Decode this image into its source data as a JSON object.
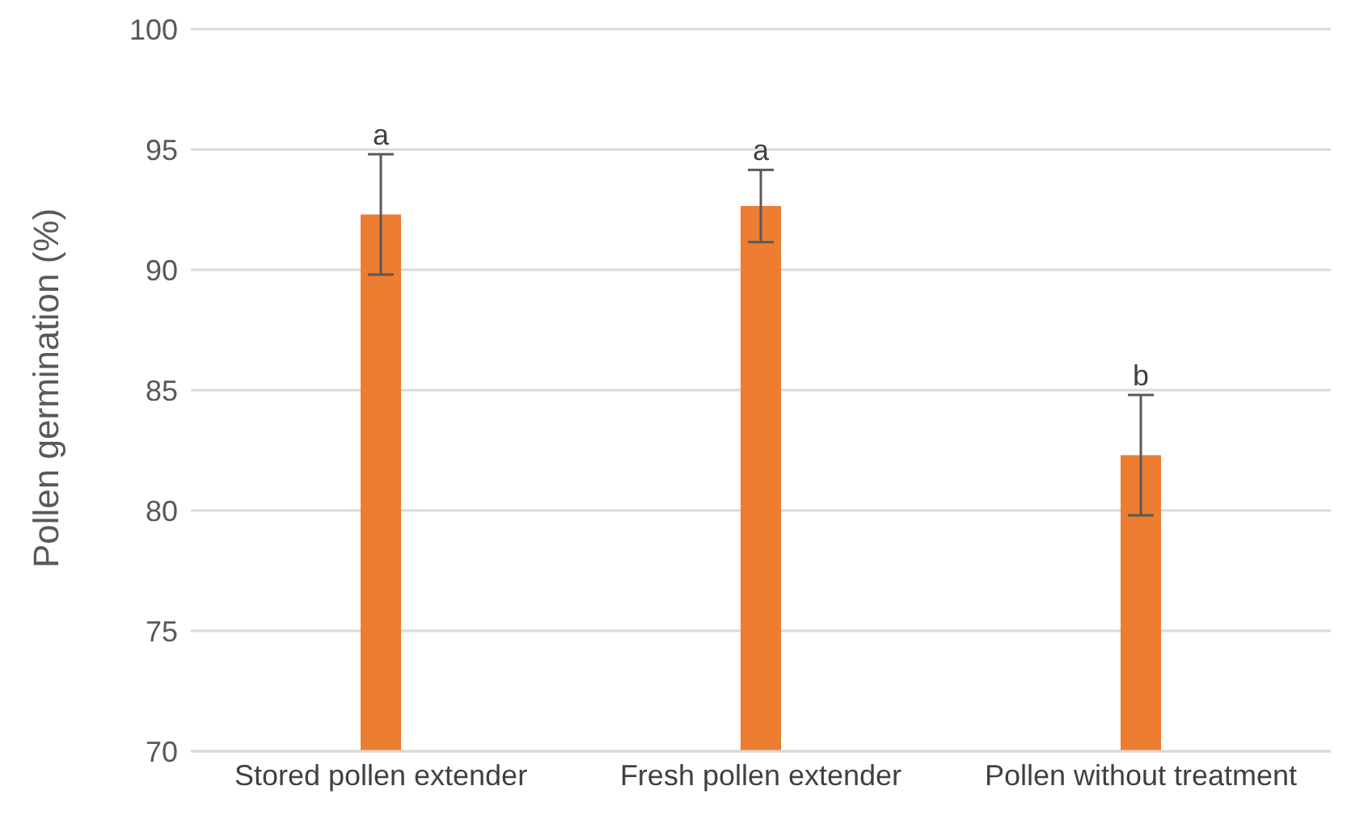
{
  "chart_data": {
    "type": "bar",
    "ylabel": "Pollen germination (%)",
    "categories": [
      "Stored pollen extender",
      "Fresh pollen extender",
      "Pollen without treatment"
    ],
    "values": [
      92.3,
      92.65,
      82.3
    ],
    "color": "#ed7d31",
    "errors": [
      2.5,
      1.5,
      2.5
    ],
    "ylim": [
      70,
      100
    ],
    "yticks": [
      70,
      75,
      80,
      85,
      90,
      95,
      100
    ],
    "grid": "y",
    "legend": false,
    "annotations": [
      {
        "text": "a",
        "x": "Stored pollen extender",
        "y": 94.8
      },
      {
        "text": "a",
        "x": "Fresh pollen extender",
        "y": 94.15
      },
      {
        "text": "b",
        "x": "Pollen without treatment",
        "y": 84.8
      }
    ]
  }
}
